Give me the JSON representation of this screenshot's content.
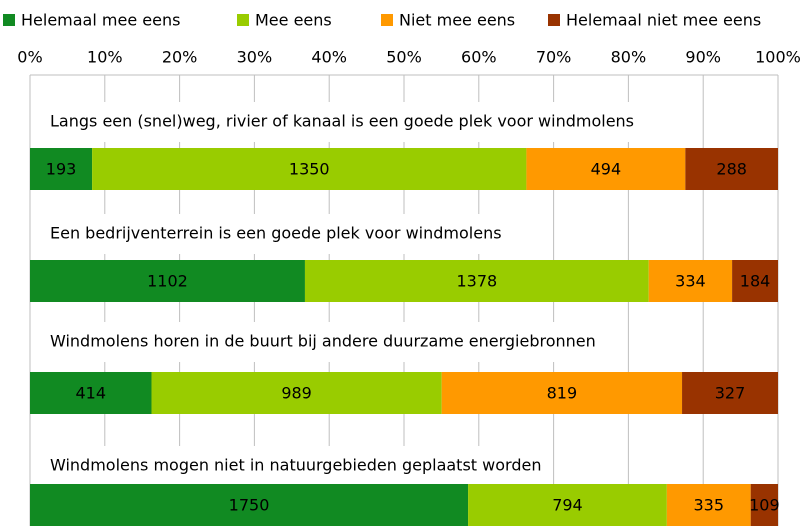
{
  "chart_data": {
    "type": "stacked-bar-100",
    "categories": [
      "Langs een (snel)weg, rivier of kanaal is een goede plek voor windmolens",
      "Een bedrijventerrein is een goede plek voor windmolens",
      "Windmolens horen in de buurt bij andere duurzame energiebronnen",
      "Windmolens mogen niet in natuurgebieden geplaatst worden"
    ],
    "series": [
      {
        "name": "Helemaal mee eens",
        "color": "#118a22",
        "values": [
          193,
          1102,
          414,
          1750
        ]
      },
      {
        "name": "Mee eens",
        "color": "#99cc00",
        "values": [
          1350,
          1378,
          989,
          794
        ]
      },
      {
        "name": "Niet mee eens",
        "color": "#ff9900",
        "values": [
          494,
          334,
          819,
          335
        ]
      },
      {
        "name": "Helemaal niet mee eens",
        "color": "#993300",
        "values": [
          288,
          184,
          327,
          109
        ]
      }
    ],
    "xlim": [
      0,
      100
    ],
    "xticks": [
      {
        "value": 0,
        "label": "0%"
      },
      {
        "value": 10,
        "label": "10%"
      },
      {
        "value": 20,
        "label": "20%"
      },
      {
        "value": 30,
        "label": "30%"
      },
      {
        "value": 40,
        "label": "40%"
      },
      {
        "value": 50,
        "label": "50%"
      },
      {
        "value": 60,
        "label": "60%"
      },
      {
        "value": 70,
        "label": "70%"
      },
      {
        "value": 80,
        "label": "80%"
      },
      {
        "value": 90,
        "label": "90%"
      },
      {
        "value": 100,
        "label": "100%"
      }
    ],
    "grid": true,
    "legend": "top"
  }
}
